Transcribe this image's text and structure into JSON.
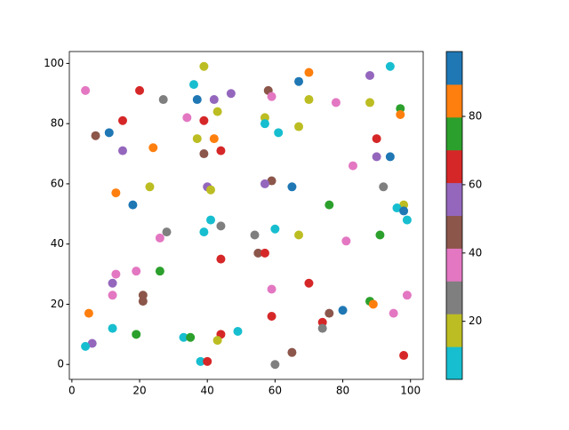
{
  "chart_data": {
    "type": "scatter",
    "x": [
      4,
      20,
      39,
      70,
      94,
      88,
      36,
      67,
      58,
      59,
      47,
      37,
      42,
      27,
      70,
      78,
      88,
      97,
      97,
      43,
      57,
      34,
      15,
      39,
      11,
      7,
      57,
      61,
      67,
      37,
      42,
      90,
      24,
      44,
      15,
      39,
      90,
      94,
      83,
      59,
      57,
      23,
      40,
      41,
      65,
      92,
      13,
      18,
      76,
      98,
      96,
      98,
      99,
      41,
      44,
      60,
      28,
      39,
      54,
      67,
      91,
      26,
      81,
      55,
      57,
      44,
      26,
      19,
      13,
      12,
      70,
      59,
      12,
      21,
      99,
      21,
      88,
      89,
      80,
      5,
      76,
      95,
      59,
      74,
      74,
      12,
      49,
      19,
      44,
      33,
      35,
      43,
      6,
      4,
      65,
      98,
      38,
      40,
      60
    ],
    "values": [
      91,
      91,
      99,
      97,
      99,
      96,
      93,
      94,
      91,
      89,
      90,
      88,
      88,
      88,
      88,
      87,
      87,
      85,
      83,
      84,
      82,
      82,
      81,
      81,
      77,
      76,
      80,
      77,
      79,
      75,
      75,
      75,
      72,
      71,
      71,
      70,
      69,
      69,
      66,
      61,
      60,
      59,
      59,
      58,
      59,
      59,
      57,
      53,
      53,
      53,
      52,
      51,
      48,
      48,
      46,
      45,
      44,
      44,
      43,
      43,
      43,
      42,
      41,
      37,
      37,
      35,
      31,
      31,
      30,
      27,
      27,
      25,
      23,
      23,
      23,
      21,
      21,
      20,
      18,
      17,
      17,
      17,
      16,
      14,
      12,
      12,
      11,
      10,
      10,
      9,
      9,
      8,
      7,
      6,
      4,
      3,
      1,
      1,
      0
    ],
    "c": [
      37,
      65,
      17,
      85,
      8,
      56,
      8,
      94,
      46,
      37,
      56,
      94,
      56,
      27,
      17,
      37,
      17,
      75,
      85,
      17,
      17,
      37,
      65,
      65,
      94,
      46,
      8,
      8,
      17,
      17,
      85,
      65,
      85,
      65,
      56,
      46,
      56,
      94,
      37,
      46,
      56,
      17,
      56,
      17,
      94,
      27,
      85,
      94,
      75,
      17,
      8,
      94,
      8,
      8,
      27,
      8,
      27,
      8,
      27,
      17,
      75,
      37,
      37,
      46,
      65,
      65,
      75,
      37,
      37,
      56,
      65,
      37,
      37,
      46,
      37,
      46,
      75,
      85,
      94,
      85,
      46,
      37,
      65,
      65,
      27,
      8,
      8,
      75,
      65,
      8,
      75,
      17,
      56,
      8,
      46,
      65,
      8,
      65,
      27
    ],
    "cmap": [
      "#17becf",
      "#bcbd22",
      "#7f7f7f",
      "#e377c2",
      "#8c564b",
      "#9467bd",
      "#d62728",
      "#2ca02c",
      "#ff7f0e",
      "#1f77b4"
    ],
    "clim": [
      3,
      99
    ],
    "cticks": [
      20,
      40,
      60,
      80
    ],
    "xlim": [
      -0.75,
      103.75
    ],
    "ylim": [
      -4.95,
      103.95
    ],
    "xticks": [
      0,
      20,
      40,
      60,
      80,
      100
    ],
    "yticks": [
      0,
      20,
      40,
      60,
      80,
      100
    ]
  }
}
